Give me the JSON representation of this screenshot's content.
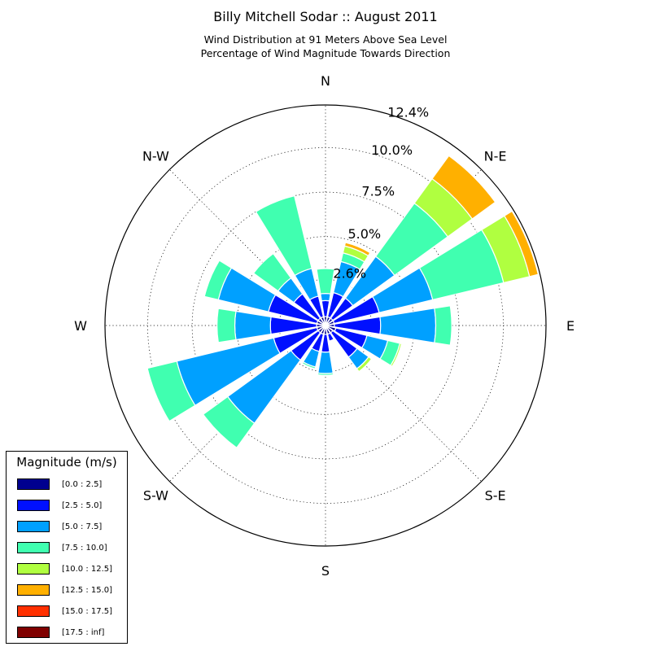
{
  "title": "Billy Mitchell Sodar :: August 2011",
  "subtitle_line1": "Wind Distribution at 91 Meters Above Sea Level",
  "subtitle_line2": "Percentage of Wind Magnitude Towards Direction",
  "legend": {
    "title": "Magnitude (m/s)",
    "items": [
      {
        "label": "[0.0 : 2.5]",
        "color": "#00008f"
      },
      {
        "label": "[2.5 : 5.0]",
        "color": "#0010ff"
      },
      {
        "label": "[5.0 : 7.5]",
        "color": "#00a0ff"
      },
      {
        "label": "[7.5 : 10.0]",
        "color": "#40ffb0"
      },
      {
        "label": "[10.0 : 12.5]",
        "color": "#b0ff40"
      },
      {
        "label": "[12.5 : 15.0]",
        "color": "#ffb000"
      },
      {
        "label": "[15.0 : 17.5]",
        "color": "#ff3000"
      },
      {
        "label": "[17.5 : inf]",
        "color": "#800000"
      }
    ]
  },
  "chart_data": {
    "type": "wind-rose",
    "title": "Billy Mitchell Sodar :: August 2011",
    "direction_labels": [
      "N",
      "N-E",
      "E",
      "S-E",
      "S",
      "S-W",
      "W",
      "N-W"
    ],
    "radial_labels": [
      "2.6%",
      "5.0%",
      "7.5%",
      "10.0%",
      "12.4%"
    ],
    "radial_values": [
      2.6,
      5.0,
      7.5,
      10.0,
      12.4
    ],
    "r_max": 12.4,
    "series_names": [
      "[0.0 : 2.5]",
      "[2.5 : 5.0]",
      "[5.0 : 7.5]",
      "[7.5 : 10.0]",
      "[10.0 : 12.5]",
      "[12.5 : 15.0]",
      "[15.0 : 17.5]",
      "[17.5 : inf]"
    ],
    "directions_deg": [
      0,
      22.5,
      45,
      67.5,
      90,
      112.5,
      135,
      157.5,
      180,
      202.5,
      225,
      247.5,
      270,
      292.5,
      315,
      337.5
    ],
    "cumulative_percent": [
      [
        0.5,
        1.4,
        1.8,
        3.2,
        null,
        null,
        null,
        null
      ],
      [
        0.5,
        1.9,
        3.7,
        4.2,
        4.6,
        4.8,
        null,
        null
      ],
      [
        0.5,
        1.9,
        4.8,
        8.5,
        10.2,
        11.8,
        null,
        null
      ],
      [
        0.5,
        3.1,
        6.2,
        10.3,
        11.8,
        12.3,
        null,
        null
      ],
      [
        0.5,
        3.1,
        6.2,
        7.1,
        null,
        null,
        null,
        null
      ],
      [
        0.6,
        2.4,
        3.6,
        4.3,
        4.4,
        null,
        null,
        null
      ],
      [
        0.5,
        2.2,
        3.0,
        3.0,
        3.2,
        null,
        null,
        null
      ],
      [
        0.5,
        0.9,
        null,
        null,
        null,
        null,
        null,
        null
      ],
      [
        0.5,
        1.5,
        2.7,
        2.8,
        null,
        null,
        null,
        null
      ],
      [
        0.5,
        1.5,
        2.4,
        2.5,
        null,
        null,
        null,
        null
      ],
      [
        0.5,
        2.4,
        6.8,
        8.5,
        null,
        null,
        null,
        null
      ],
      [
        0.5,
        3.0,
        8.6,
        10.3,
        null,
        null,
        null,
        null
      ],
      [
        0.5,
        3.1,
        5.1,
        6.1,
        null,
        null,
        null,
        null
      ],
      [
        0.5,
        3.3,
        6.2,
        7.0,
        null,
        null,
        null,
        null
      ],
      [
        0.5,
        2.2,
        3.3,
        5.0,
        null,
        null,
        null,
        null
      ],
      [
        0.5,
        1.7,
        3.3,
        7.5,
        null,
        null,
        null,
        null
      ]
    ]
  }
}
